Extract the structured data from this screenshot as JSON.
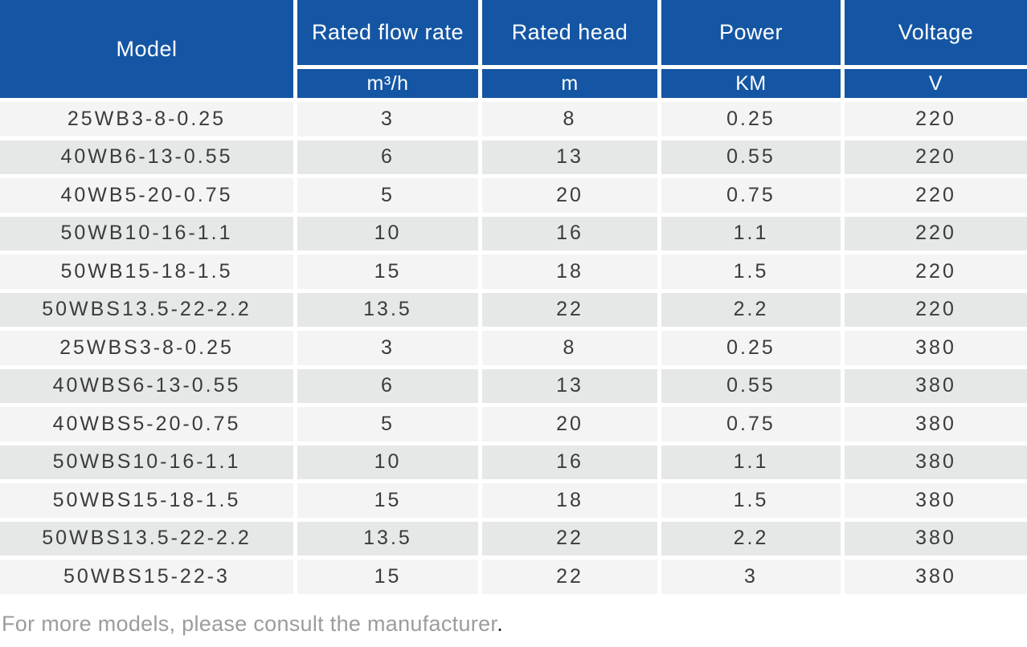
{
  "table": {
    "columns": [
      {
        "label": "Model",
        "unit": ""
      },
      {
        "label": "Rated flow rate",
        "unit": "m³/h"
      },
      {
        "label": "Rated head",
        "unit": "m"
      },
      {
        "label": "Power",
        "unit": "KM"
      },
      {
        "label": "Voltage",
        "unit": "V"
      }
    ],
    "rows": [
      {
        "model": "25WB3-8-0.25",
        "flow": "3",
        "head": "8",
        "power": "0.25",
        "voltage": "220"
      },
      {
        "model": "40WB6-13-0.55",
        "flow": "6",
        "head": "13",
        "power": "0.55",
        "voltage": "220"
      },
      {
        "model": "40WB5-20-0.75",
        "flow": "5",
        "head": "20",
        "power": "0.75",
        "voltage": "220"
      },
      {
        "model": "50WB10-16-1.1",
        "flow": "10",
        "head": "16",
        "power": "1.1",
        "voltage": "220"
      },
      {
        "model": "50WB15-18-1.5",
        "flow": "15",
        "head": "18",
        "power": "1.5",
        "voltage": "220"
      },
      {
        "model": "50WBS13.5-22-2.2",
        "flow": "13.5",
        "head": "22",
        "power": "2.2",
        "voltage": "220"
      },
      {
        "model": "25WBS3-8-0.25",
        "flow": "3",
        "head": "8",
        "power": "0.25",
        "voltage": "380"
      },
      {
        "model": "40WBS6-13-0.55",
        "flow": "6",
        "head": "13",
        "power": "0.55",
        "voltage": "380"
      },
      {
        "model": "40WBS5-20-0.75",
        "flow": "5",
        "head": "20",
        "power": "0.75",
        "voltage": "380"
      },
      {
        "model": "50WBS10-16-1.1",
        "flow": "10",
        "head": "16",
        "power": "1.1",
        "voltage": "380"
      },
      {
        "model": "50WBS15-18-1.5",
        "flow": "15",
        "head": "18",
        "power": "1.5",
        "voltage": "380"
      },
      {
        "model": "50WBS13.5-22-2.2",
        "flow": "13.5",
        "head": "22",
        "power": "2.2",
        "voltage": "380"
      },
      {
        "model": "50WBS15-22-3",
        "flow": "15",
        "head": "22",
        "power": "3",
        "voltage": "380"
      }
    ]
  },
  "footer": {
    "text": "For more models, please consult the manufacturer",
    "period": "."
  },
  "colors": {
    "header_blue": "#1556a4",
    "row_light": "#f4f4f4",
    "row_dark": "#e5e8e6",
    "text_dark": "#3b3b3b",
    "footer_gray": "#9c9c9c"
  }
}
